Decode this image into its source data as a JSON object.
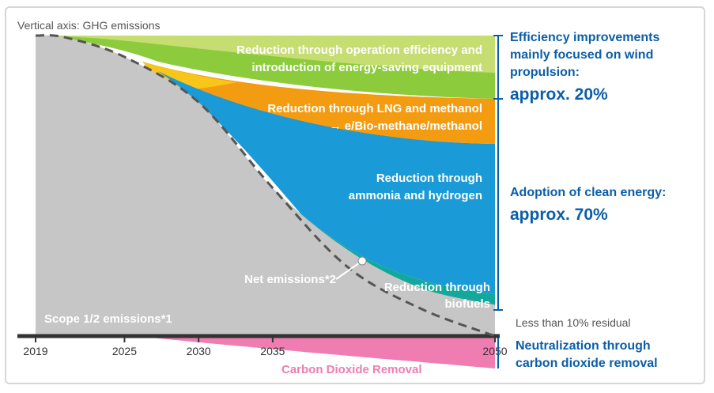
{
  "chart_data": {
    "type": "area",
    "title": "",
    "ylabel": "Vertical axis: GHG emissions",
    "xlabel": "",
    "x_ticks": [
      "2019",
      "2025",
      "2030",
      "2035",
      "2050"
    ],
    "net_years": [
      2019,
      2021,
      2025,
      2030,
      2035,
      2040,
      2045,
      2050
    ],
    "net_emissions_index": [
      100,
      99.4,
      92.9,
      77.8,
      49.3,
      23.2,
      9.1,
      0
    ],
    "scope_emissions_index": [
      100,
      99.4,
      92.9,
      77.8,
      49.3,
      28.9,
      16.0,
      10.4
    ],
    "series": [
      {
        "name": "Reduction through operation efficiency and introduction of energy-saving equipment",
        "color": "#8ccb3c"
      },
      {
        "name": "Reduction through LNG and methanol → e/Bio-methane/methanol",
        "color": "#f39c12"
      },
      {
        "name": "Reduction through ammonia and hydrogen",
        "color": "#1a9ad6"
      },
      {
        "name": "Reduction through biofuels",
        "color": "#12a89b"
      },
      {
        "name": "Scope 1/2 emissions*1",
        "color": "#c6c6c6"
      },
      {
        "name": "Net emissions*2"
      },
      {
        "name": "Carbon Dioxide Removal",
        "color": "#ef7db1"
      }
    ],
    "labels": {
      "efficiency": [
        "Reduction through operation efficiency and",
        "introduction of energy-saving equipment"
      ],
      "lng": [
        "Reduction through LNG and methanol",
        "→ e/Bio-methane/methanol"
      ],
      "ammonia": [
        "Reduction through",
        "ammonia and hydrogen"
      ],
      "biofuels": [
        "Reduction through",
        "biofuels"
      ],
      "scope": "Scope 1/2 emissions*1",
      "net": "Net emissions*2",
      "cdr": "Carbon Dioxide Removal"
    },
    "annotations": {
      "efficiency": {
        "lines": [
          "Efficiency improvements",
          "mainly focused on wind",
          "propulsion:"
        ],
        "value": "approx. 20%"
      },
      "clean_energy": {
        "title": "Adoption of clean energy:",
        "value": "approx. 70%"
      },
      "residual": "Less than 10% residual",
      "neutralization": [
        "Neutralization through",
        "carbon dioxide removal"
      ]
    }
  }
}
